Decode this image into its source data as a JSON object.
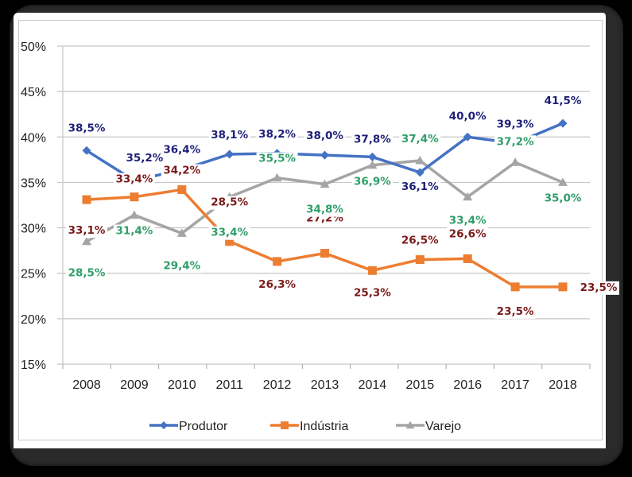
{
  "chart_data": {
    "type": "line",
    "title": "",
    "xlabel": "",
    "ylabel": "",
    "categories": [
      "2008",
      "2009",
      "2010",
      "2011",
      "2012",
      "2013",
      "2014",
      "2015",
      "2016",
      "2017",
      "2018"
    ],
    "ylim": [
      15,
      50
    ],
    "yticks": [
      15,
      20,
      25,
      30,
      35,
      40,
      45,
      50
    ],
    "ytick_labels": [
      "15%",
      "20%",
      "25%",
      "30%",
      "35%",
      "40%",
      "45%",
      "50%"
    ],
    "grid": true,
    "legend_position": "bottom",
    "series": [
      {
        "name": "Produtor",
        "marker": "diamond",
        "color": "#4472C4",
        "label_color": "#1F1F7A",
        "values": [
          38.5,
          35.2,
          36.4,
          38.1,
          38.2,
          38.0,
          37.8,
          36.1,
          40.0,
          39.3,
          41.5
        ],
        "labels": [
          "38,5%",
          "35,2%",
          "36,4%",
          "38,1%",
          "38,2%",
          "38,0%",
          "37,8%",
          "36,1%",
          "40,0%",
          "39,3%",
          "41,5%"
        ]
      },
      {
        "name": "Indústria",
        "marker": "square",
        "color": "#ED7D31",
        "label_color": "#7B1A1A",
        "values": [
          33.1,
          33.4,
          34.2,
          28.5,
          26.3,
          27.2,
          25.3,
          26.5,
          26.6,
          23.5,
          23.5
        ],
        "labels": [
          "33,1%",
          "33,4%",
          "34,2%",
          "28,5%",
          "26,3%",
          "27,2%",
          "25,3%",
          "26,5%",
          "26,6%",
          "23,5%",
          "23,5%"
        ]
      },
      {
        "name": "Varejo",
        "marker": "triangle",
        "color": "#A5A5A5",
        "label_color": "#2E9E6A",
        "values": [
          28.5,
          31.4,
          29.4,
          33.4,
          35.5,
          34.8,
          36.9,
          37.4,
          33.4,
          37.2,
          35.0
        ],
        "labels": [
          "28,5%",
          "31,4%",
          "29,4%",
          "33,4%",
          "35,5%",
          "34,8%",
          "36,9%",
          "37,4%",
          "33,4%",
          "37,2%",
          "35,0%"
        ]
      }
    ]
  }
}
